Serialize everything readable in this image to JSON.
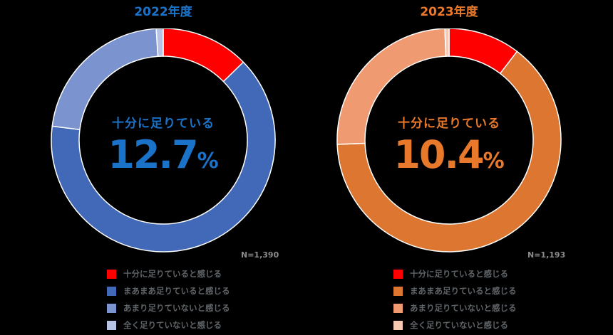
{
  "chart_data": [
    {
      "type": "pie",
      "subtype": "donut",
      "title": "2022年度",
      "center_label": "十分に足りている",
      "center_value": "12.7",
      "center_unit": "%",
      "n_label": "N=1,390",
      "categories": [
        "十分に足りていると感じる",
        "まあまあ足りていると感じる",
        "あまり足りていないと感じる",
        "全く足りていないと感じる"
      ],
      "values": [
        12.7,
        64.3,
        22.0,
        1.0
      ],
      "colors": [
        "#ff0000",
        "#4169b8",
        "#7b93cf",
        "#b6c3e4"
      ],
      "accent_color": "#1a73c8",
      "legend_position": "bottom"
    },
    {
      "type": "pie",
      "subtype": "donut",
      "title": "2023年度",
      "center_label": "十分に足りている",
      "center_value": "10.4",
      "center_unit": "%",
      "n_label": "N=1,193",
      "categories": [
        "十分に足りていると感じる",
        "まあまあ足りていると感じる",
        "あまり足りていないと感じる",
        "全く足りていないと感じる"
      ],
      "values": [
        10.4,
        64.0,
        25.0,
        0.6
      ],
      "colors": [
        "#ff0000",
        "#dd7631",
        "#ef9a70",
        "#f7c9b2"
      ],
      "accent_color": "#e8792b",
      "legend_position": "bottom"
    }
  ]
}
